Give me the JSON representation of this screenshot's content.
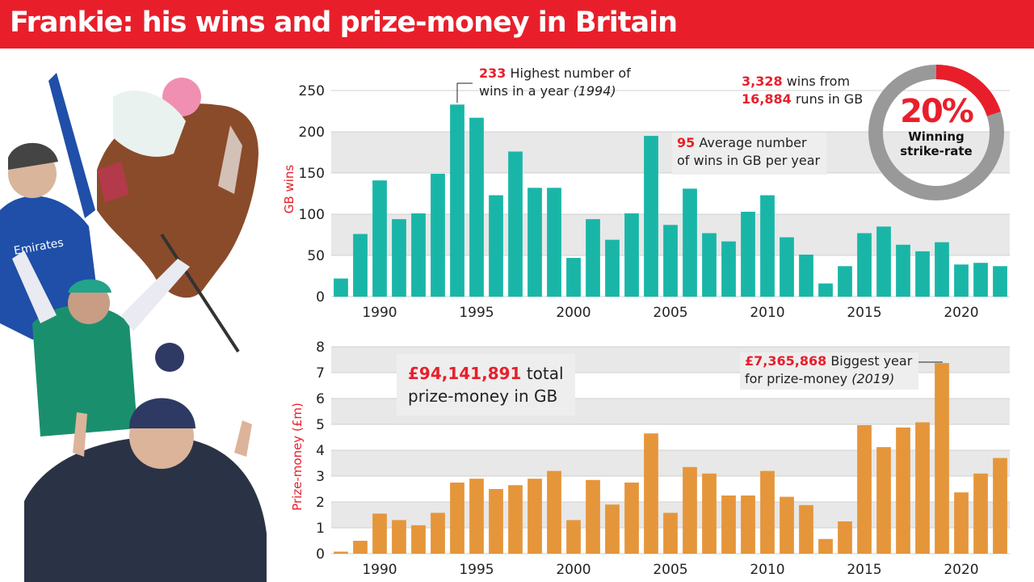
{
  "header": {
    "title": "Frankie: his wins and prize-money in Britain"
  },
  "colors": {
    "red": "#e81f2b",
    "teal": "#19b6a8",
    "orange": "#e5963b",
    "ring_grey": "#999999"
  },
  "annotations": {
    "wins_peak_value": "233",
    "wins_peak_text": "Highest number of",
    "wins_peak_text2": "wins in a year",
    "wins_peak_year": "(1994)",
    "avg_value": "95",
    "avg_text": "Average number",
    "avg_text2": "of wins in GB per year",
    "total_wins": "3,328",
    "total_wins_text": "wins from",
    "total_runs": "16,884",
    "total_runs_text": "runs in GB",
    "strike_pct": "20%",
    "strike_label1": "Winning",
    "strike_label2": "strike-rate",
    "prize_total": "£94,141,891",
    "prize_total_text": "total",
    "prize_total_text2": "prize-money in GB",
    "prize_peak_value": "£7,365,868",
    "prize_peak_text": "Biggest year",
    "prize_peak_text2": "for prize-money",
    "prize_peak_year": "(2019)"
  },
  "chart_data": [
    {
      "type": "bar",
      "ylabel": "GB  wins",
      "x": [
        1988,
        1989,
        1990,
        1991,
        1992,
        1993,
        1994,
        1995,
        1996,
        1997,
        1998,
        1999,
        2000,
        2001,
        2002,
        2003,
        2004,
        2005,
        2006,
        2007,
        2008,
        2009,
        2010,
        2011,
        2012,
        2013,
        2014,
        2015,
        2016,
        2017,
        2018,
        2019,
        2020,
        2021,
        2022
      ],
      "values": [
        22,
        76,
        141,
        94,
        101,
        149,
        233,
        217,
        123,
        176,
        132,
        132,
        47,
        94,
        69,
        101,
        195,
        87,
        131,
        77,
        67,
        103,
        123,
        72,
        51,
        16,
        37,
        77,
        85,
        63,
        55,
        66,
        39,
        41,
        37
      ],
      "ylim": [
        0,
        250
      ],
      "yticks": [
        0,
        50,
        100,
        150,
        200,
        250
      ],
      "xticks": [
        1990,
        1995,
        2000,
        2005,
        2010,
        2015,
        2020
      ],
      "grid": "alternating bands"
    },
    {
      "type": "bar",
      "ylabel": "Prize-money (£m)",
      "x": [
        1988,
        1989,
        1990,
        1991,
        1992,
        1993,
        1994,
        1995,
        1996,
        1997,
        1998,
        1999,
        2000,
        2001,
        2002,
        2003,
        2004,
        2005,
        2006,
        2007,
        2008,
        2009,
        2010,
        2011,
        2012,
        2013,
        2014,
        2015,
        2016,
        2017,
        2018,
        2019,
        2020,
        2021,
        2022
      ],
      "values": [
        0.08,
        0.5,
        1.55,
        1.3,
        1.1,
        1.58,
        2.75,
        2.9,
        2.5,
        2.65,
        2.9,
        3.2,
        1.3,
        2.85,
        1.9,
        2.75,
        4.65,
        1.58,
        3.35,
        3.1,
        2.25,
        2.25,
        3.2,
        2.2,
        1.88,
        0.57,
        1.25,
        4.97,
        4.12,
        4.88,
        5.08,
        7.37,
        2.37,
        3.1,
        3.7
      ],
      "ylim": [
        0,
        8
      ],
      "yticks": [
        0,
        1,
        2,
        3,
        4,
        5,
        6,
        7,
        8
      ],
      "xticks": [
        1990,
        1995,
        2000,
        2005,
        2010,
        2015,
        2020
      ],
      "grid": "alternating bands"
    }
  ]
}
